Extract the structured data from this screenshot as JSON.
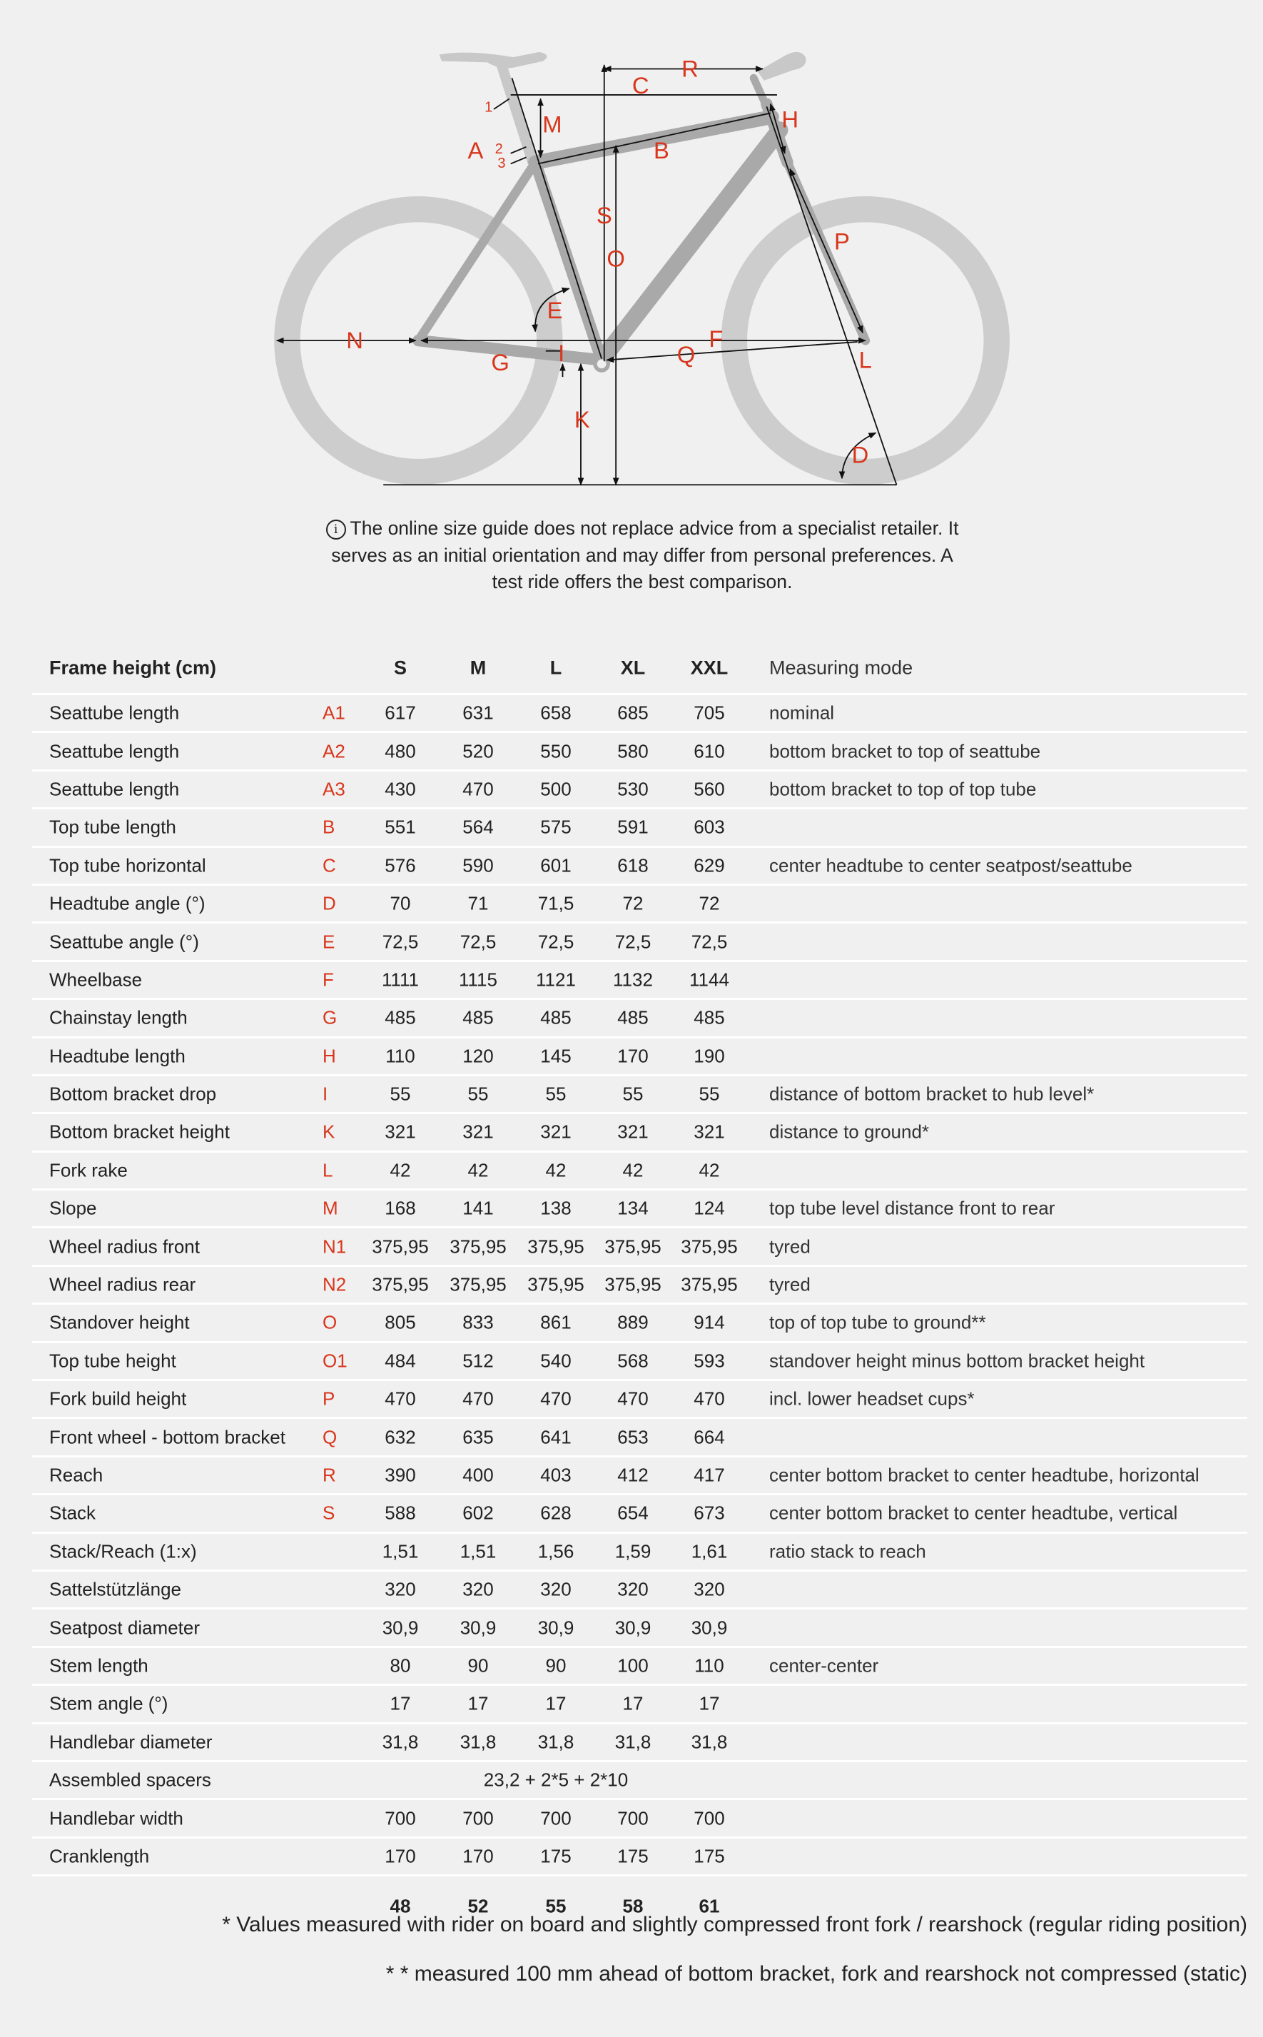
{
  "diagram": {
    "labels": [
      "A",
      "1",
      "2",
      "3",
      "B",
      "C",
      "D",
      "E",
      "F",
      "G",
      "H",
      "I",
      "K",
      "L",
      "M",
      "N",
      "O",
      "P",
      "Q",
      "R",
      "S"
    ],
    "colors": {
      "label": "#d8361c",
      "frame": "#a9a9a9",
      "wheel": "#cdcdcd",
      "line": "#111111"
    }
  },
  "info": {
    "icon": "info-circle-icon",
    "lines": [
      "The online size guide does not replace advice from a specialist retailer. It",
      "serves as an initial orientation and may differ from personal preferences. A",
      "test ride offers the best comparison."
    ]
  },
  "table": {
    "header": {
      "label": "Frame height (cm)",
      "sizes": [
        "S",
        "M",
        "L",
        "XL",
        "XXL"
      ],
      "mode": "Measuring mode"
    },
    "rows": [
      {
        "label": "Seattube length",
        "letter": "A1",
        "values": [
          "617",
          "631",
          "658",
          "685",
          "705"
        ],
        "mode": "nominal"
      },
      {
        "label": "Seattube length",
        "letter": "A2",
        "values": [
          "480",
          "520",
          "550",
          "580",
          "610"
        ],
        "mode": "bottom bracket to top of seattube"
      },
      {
        "label": "Seattube length",
        "letter": "A3",
        "values": [
          "430",
          "470",
          "500",
          "530",
          "560"
        ],
        "mode": "bottom bracket to top of top tube"
      },
      {
        "label": "Top tube length",
        "letter": "B",
        "values": [
          "551",
          "564",
          "575",
          "591",
          "603"
        ],
        "mode": ""
      },
      {
        "label": "Top tube horizontal",
        "letter": "C",
        "values": [
          "576",
          "590",
          "601",
          "618",
          "629"
        ],
        "mode": "center headtube to center seatpost/seattube"
      },
      {
        "label": "Headtube angle (°)",
        "letter": "D",
        "values": [
          "70",
          "71",
          "71,5",
          "72",
          "72"
        ],
        "mode": ""
      },
      {
        "label": "Seattube angle (°)",
        "letter": "E",
        "values": [
          "72,5",
          "72,5",
          "72,5",
          "72,5",
          "72,5"
        ],
        "mode": ""
      },
      {
        "label": "Wheelbase",
        "letter": "F",
        "values": [
          "1111",
          "1115",
          "1121",
          "1132",
          "1144"
        ],
        "mode": ""
      },
      {
        "label": "Chainstay length",
        "letter": "G",
        "values": [
          "485",
          "485",
          "485",
          "485",
          "485"
        ],
        "mode": ""
      },
      {
        "label": "Headtube length",
        "letter": "H",
        "values": [
          "110",
          "120",
          "145",
          "170",
          "190"
        ],
        "mode": ""
      },
      {
        "label": "Bottom bracket drop",
        "letter": "I",
        "values": [
          "55",
          "55",
          "55",
          "55",
          "55"
        ],
        "mode": "distance of bottom bracket to hub level*"
      },
      {
        "label": "Bottom bracket height",
        "letter": "K",
        "values": [
          "321",
          "321",
          "321",
          "321",
          "321"
        ],
        "mode": "distance to ground*"
      },
      {
        "label": "Fork rake",
        "letter": "L",
        "values": [
          "42",
          "42",
          "42",
          "42",
          "42"
        ],
        "mode": ""
      },
      {
        "label": "Slope",
        "letter": "M",
        "values": [
          "168",
          "141",
          "138",
          "134",
          "124"
        ],
        "mode": "top tube level distance front to rear"
      },
      {
        "label": "Wheel radius front",
        "letter": "N1",
        "values": [
          "375,95",
          "375,95",
          "375,95",
          "375,95",
          "375,95"
        ],
        "mode": "tyred"
      },
      {
        "label": "Wheel radius rear",
        "letter": "N2",
        "values": [
          "375,95",
          "375,95",
          "375,95",
          "375,95",
          "375,95"
        ],
        "mode": "tyred"
      },
      {
        "label": "Standover height",
        "letter": "O",
        "values": [
          "805",
          "833",
          "861",
          "889",
          "914"
        ],
        "mode": "top of top tube to ground**"
      },
      {
        "label": "Top tube height",
        "letter": "O1",
        "values": [
          "484",
          "512",
          "540",
          "568",
          "593"
        ],
        "mode": "standover height minus bottom bracket height"
      },
      {
        "label": "Fork build height",
        "letter": "P",
        "values": [
          "470",
          "470",
          "470",
          "470",
          "470"
        ],
        "mode": "incl. lower headset cups*"
      },
      {
        "label": "Front wheel - bottom bracket",
        "letter": "Q",
        "values": [
          "632",
          "635",
          "641",
          "653",
          "664"
        ],
        "mode": ""
      },
      {
        "label": "Reach",
        "letter": "R",
        "values": [
          "390",
          "400",
          "403",
          "412",
          "417"
        ],
        "mode": "center bottom bracket to center headtube, horizontal"
      },
      {
        "label": "Stack",
        "letter": "S",
        "values": [
          "588",
          "602",
          "628",
          "654",
          "673"
        ],
        "mode": "center bottom bracket to center headtube, vertical"
      },
      {
        "label": "Stack/Reach (1:x)",
        "letter": "",
        "values": [
          "1,51",
          "1,51",
          "1,56",
          "1,59",
          "1,61"
        ],
        "mode": "ratio stack to reach"
      },
      {
        "label": "Sattelstützlänge",
        "letter": "",
        "values": [
          "320",
          "320",
          "320",
          "320",
          "320"
        ],
        "mode": ""
      },
      {
        "label": "Seatpost diameter",
        "letter": "",
        "values": [
          "30,9",
          "30,9",
          "30,9",
          "30,9",
          "30,9"
        ],
        "mode": ""
      },
      {
        "label": "Stem length",
        "letter": "",
        "values": [
          "80",
          "90",
          "90",
          "100",
          "110"
        ],
        "mode": "center-center"
      },
      {
        "label": "Stem angle (°)",
        "letter": "",
        "values": [
          "17",
          "17",
          "17",
          "17",
          "17"
        ],
        "mode": ""
      },
      {
        "label": "Handlebar diameter",
        "letter": "",
        "values": [
          "31,8",
          "31,8",
          "31,8",
          "31,8",
          "31,8"
        ],
        "mode": ""
      },
      {
        "label": "Assembled spacers",
        "letter": "",
        "span": "23,2 + 2*5 + 2*10",
        "mode": ""
      },
      {
        "label": "Handlebar width",
        "letter": "",
        "values": [
          "700",
          "700",
          "700",
          "700",
          "700"
        ],
        "mode": ""
      },
      {
        "label": "Cranklength",
        "letter": "",
        "values": [
          "170",
          "170",
          "175",
          "175",
          "175"
        ],
        "mode": ""
      }
    ],
    "footer_sizes": [
      "48",
      "52",
      "55",
      "58",
      "61"
    ]
  },
  "footnotes": [
    "* Values measured with rider on board and slightly compressed front fork / rearshock (regular riding position)",
    "* * measured 100 mm ahead of bottom bracket, fork and rearshock not compressed (static)"
  ]
}
